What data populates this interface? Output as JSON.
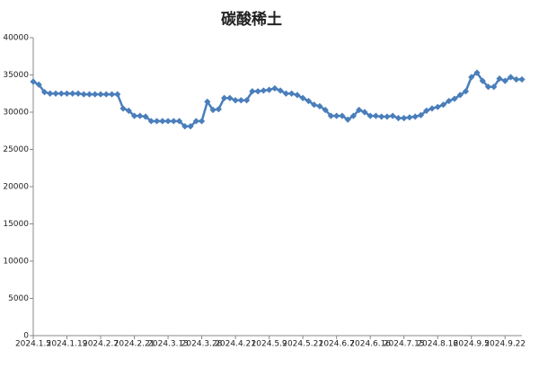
{
  "chart_data": {
    "type": "line",
    "title": "碳酸稀土",
    "categories": [
      "2024.1.5",
      null,
      null,
      null,
      null,
      null,
      "2024.1.19",
      null,
      null,
      null,
      null,
      null,
      "2024.2.7",
      null,
      null,
      null,
      null,
      null,
      "2024.2.21",
      null,
      null,
      null,
      null,
      null,
      "2024.3.13",
      null,
      null,
      null,
      null,
      null,
      "2024.3.28",
      null,
      null,
      null,
      null,
      null,
      "2024.4.21",
      null,
      null,
      null,
      null,
      null,
      "2024.5.9",
      null,
      null,
      null,
      null,
      null,
      "2024.5.21",
      null,
      null,
      null,
      null,
      null,
      "2024.6.7",
      null,
      null,
      null,
      null,
      null,
      "2024.6.16",
      null,
      null,
      null,
      null,
      null,
      "2024.7.15",
      null,
      null,
      null,
      null,
      null,
      "2024.8.16",
      null,
      null,
      null,
      null,
      null,
      "2024.9.5",
      null,
      null,
      null,
      null,
      null,
      "2024.9.22",
      null,
      null,
      null
    ],
    "series": [
      {
        "name": "碳酸稀土",
        "color": "#4a7ebb",
        "values": [
          34100,
          33700,
          32700,
          32500,
          32500,
          32500,
          32500,
          32500,
          32500,
          32400,
          32400,
          32400,
          32400,
          32400,
          32400,
          32400,
          30500,
          30200,
          29500,
          29500,
          29400,
          28800,
          28800,
          28800,
          28800,
          28800,
          28800,
          28100,
          28100,
          28800,
          28800,
          31400,
          30300,
          30400,
          31900,
          31900,
          31600,
          31600,
          31600,
          32800,
          32800,
          32900,
          33000,
          33200,
          32900,
          32500,
          32500,
          32300,
          31900,
          31500,
          31000,
          30800,
          30300,
          29500,
          29500,
          29500,
          29000,
          29500,
          30300,
          30000,
          29500,
          29500,
          29400,
          29400,
          29500,
          29200,
          29200,
          29300,
          29400,
          29600,
          30200,
          30500,
          30700,
          31000,
          31500,
          31800,
          32300,
          32800,
          34700,
          35300,
          34200,
          33400,
          33400,
          34500,
          34200,
          34700,
          34400,
          34400
        ]
      }
    ],
    "ylim": [
      0,
      40000
    ],
    "yticks": [
      0,
      5000,
      10000,
      15000,
      20000,
      25000,
      30000,
      35000,
      40000
    ],
    "grid": false
  }
}
